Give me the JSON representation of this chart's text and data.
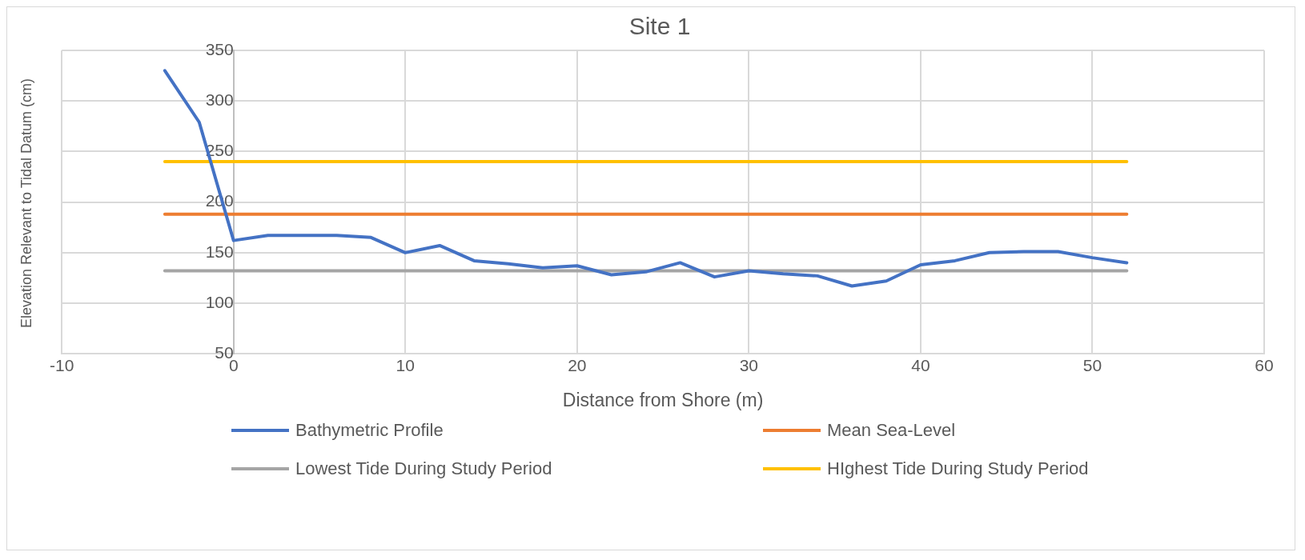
{
  "chart_data": {
    "type": "line",
    "title": "Site 1",
    "xlabel": "Distance from Shore (m)",
    "ylabel": "Elevation Relevant to Tidal Datum (cm)",
    "xlim": [
      -10,
      60
    ],
    "xticks": [
      -10,
      0,
      10,
      20,
      30,
      40,
      50,
      60
    ],
    "ylim": [
      50,
      350
    ],
    "yticks": [
      50,
      100,
      150,
      200,
      250,
      300,
      350
    ],
    "grid": true,
    "legend": "bottom",
    "marker": "none",
    "line_style": "solid",
    "series": [
      {
        "name": "Bathymetric Profile",
        "color": "#4472c4",
        "x": [
          -4,
          -2,
          0,
          2,
          4,
          6,
          8,
          10,
          12,
          14,
          16,
          18,
          20,
          22,
          24,
          26,
          28,
          30,
          32,
          34,
          36,
          38,
          40,
          42,
          44,
          46,
          48,
          50,
          52
        ],
        "values": [
          330,
          279,
          162,
          167,
          167,
          167,
          165,
          150,
          157,
          142,
          139,
          135,
          137,
          128,
          131,
          140,
          126,
          132,
          129,
          127,
          117,
          122,
          138,
          142,
          150,
          151,
          151,
          145,
          140
        ]
      },
      {
        "name": "Mean Sea-Level",
        "color": "#ed7d31",
        "x": [
          -4,
          52
        ],
        "values": [
          188,
          188
        ]
      },
      {
        "name": "Lowest Tide During Study Period",
        "color": "#a5a5a5",
        "x": [
          -4,
          52
        ],
        "values": [
          132,
          132
        ]
      },
      {
        "name": "HIghest Tide During Study Period",
        "color": "#ffc000",
        "x": [
          -4,
          52
        ],
        "values": [
          240,
          240
        ]
      }
    ]
  }
}
